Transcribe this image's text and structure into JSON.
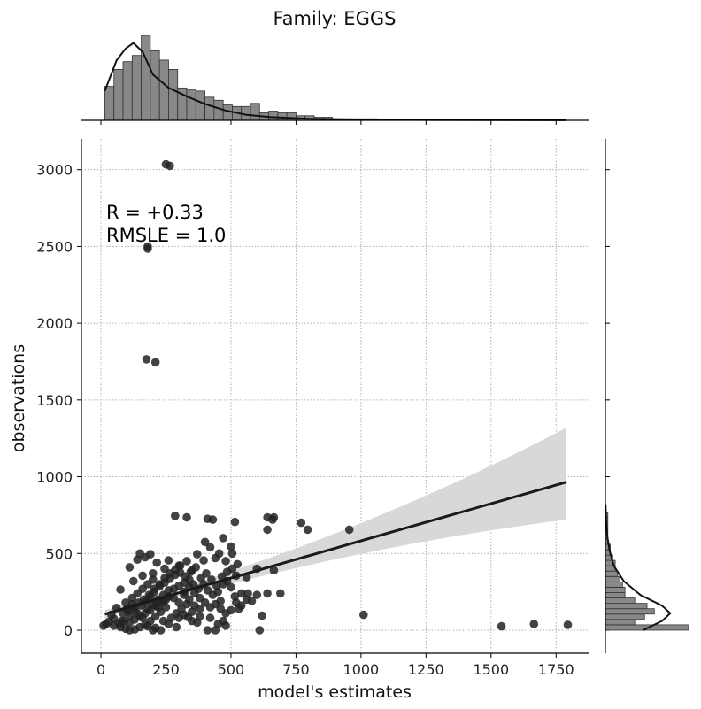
{
  "chart_data": {
    "type": "scatter",
    "title": "Family: EGGS",
    "xlabel": "model's estimates",
    "ylabel": "observations",
    "xlim": [
      -75,
      1875
    ],
    "ylim": [
      -150,
      3200
    ],
    "xticks": [
      "0",
      "250",
      "500",
      "750",
      "1000",
      "1250",
      "1500",
      "1750"
    ],
    "yticks": [
      "0",
      "500",
      "1000",
      "1500",
      "2000",
      "2500",
      "3000"
    ],
    "grid": true,
    "annotation": {
      "line1": "R = +0.33",
      "line2": "RMSLE =  1.0"
    },
    "regression": {
      "x": [
        15,
        1790
      ],
      "y": [
        105,
        965
      ],
      "ci_upper_end": 1320,
      "ci_lower_end": 720,
      "ci_width_start": 25
    },
    "points": [
      [
        250,
        3035
      ],
      [
        265,
        3025
      ],
      [
        180,
        2500
      ],
      [
        180,
        2485
      ],
      [
        175,
        1765
      ],
      [
        210,
        1745
      ],
      [
        955,
        655
      ],
      [
        1010,
        100
      ],
      [
        1540,
        25
      ],
      [
        1665,
        40
      ],
      [
        1795,
        35
      ],
      [
        285,
        745
      ],
      [
        330,
        735
      ],
      [
        410,
        725
      ],
      [
        430,
        720
      ],
      [
        515,
        705
      ],
      [
        640,
        735
      ],
      [
        660,
        720
      ],
      [
        665,
        735
      ],
      [
        770,
        700
      ],
      [
        795,
        655
      ],
      [
        640,
        655
      ],
      [
        665,
        390
      ],
      [
        600,
        400
      ],
      [
        620,
        95
      ],
      [
        610,
        0
      ],
      [
        690,
        240
      ],
      [
        640,
        240
      ],
      [
        540,
        240
      ],
      [
        565,
        240
      ],
      [
        520,
        355
      ],
      [
        560,
        345
      ],
      [
        505,
        500
      ],
      [
        500,
        545
      ],
      [
        455,
        500
      ],
      [
        400,
        575
      ],
      [
        420,
        540
      ],
      [
        470,
        600
      ],
      [
        370,
        495
      ],
      [
        395,
        455
      ],
      [
        350,
        390
      ],
      [
        300,
        80
      ],
      [
        335,
        85
      ],
      [
        370,
        50
      ],
      [
        410,
        0
      ],
      [
        440,
        0
      ],
      [
        530,
        140
      ],
      [
        515,
        220
      ],
      [
        460,
        190
      ],
      [
        380,
        140
      ],
      [
        260,
        455
      ],
      [
        300,
        420
      ],
      [
        330,
        450
      ],
      [
        190,
        495
      ],
      [
        170,
        475
      ],
      [
        215,
        440
      ],
      [
        245,
        400
      ],
      [
        110,
        410
      ],
      [
        140,
        460
      ],
      [
        200,
        370
      ],
      [
        160,
        355
      ],
      [
        125,
        320
      ],
      [
        75,
        265
      ],
      [
        95,
        180
      ],
      [
        60,
        145
      ],
      [
        40,
        100
      ],
      [
        30,
        55
      ],
      [
        20,
        40
      ],
      [
        10,
        30
      ],
      [
        50,
        75
      ],
      [
        80,
        60
      ],
      [
        110,
        95
      ],
      [
        130,
        130
      ],
      [
        155,
        160
      ],
      [
        175,
        190
      ],
      [
        190,
        220
      ],
      [
        205,
        250
      ],
      [
        225,
        285
      ],
      [
        245,
        310
      ],
      [
        265,
        335
      ],
      [
        285,
        360
      ],
      [
        305,
        375
      ],
      [
        320,
        310
      ],
      [
        340,
        330
      ],
      [
        355,
        300
      ],
      [
        375,
        270
      ],
      [
        395,
        300
      ],
      [
        410,
        260
      ],
      [
        430,
        230
      ],
      [
        450,
        250
      ],
      [
        470,
        300
      ],
      [
        485,
        320
      ],
      [
        500,
        280
      ],
      [
        280,
        210
      ],
      [
        300,
        180
      ],
      [
        320,
        230
      ],
      [
        340,
        200
      ],
      [
        360,
        160
      ],
      [
        250,
        150
      ],
      [
        230,
        120
      ],
      [
        210,
        90
      ],
      [
        190,
        60
      ],
      [
        170,
        35
      ],
      [
        150,
        20
      ],
      [
        130,
        5
      ],
      [
        110,
        0
      ],
      [
        95,
        10
      ],
      [
        75,
        20
      ],
      [
        200,
        0
      ],
      [
        230,
        0
      ],
      [
        260,
        40
      ],
      [
        290,
        20
      ],
      [
        320,
        100
      ],
      [
        350,
        120
      ],
      [
        380,
        90
      ],
      [
        420,
        80
      ],
      [
        470,
        60
      ],
      [
        500,
        130
      ],
      [
        120,
        210
      ],
      [
        140,
        240
      ],
      [
        160,
        270
      ],
      [
        180,
        300
      ],
      [
        200,
        330
      ],
      [
        220,
        200
      ],
      [
        240,
        230
      ],
      [
        260,
        260
      ],
      [
        100,
        140
      ],
      [
        120,
        170
      ],
      [
        140,
        110
      ],
      [
        160,
        80
      ],
      [
        180,
        140
      ],
      [
        200,
        170
      ],
      [
        220,
        150
      ],
      [
        240,
        190
      ],
      [
        260,
        220
      ],
      [
        280,
        270
      ],
      [
        300,
        290
      ],
      [
        320,
        250
      ],
      [
        340,
        280
      ],
      [
        360,
        240
      ],
      [
        380,
        210
      ],
      [
        400,
        180
      ],
      [
        420,
        150
      ],
      [
        440,
        170
      ],
      [
        460,
        140
      ],
      [
        480,
        110
      ],
      [
        520,
        180
      ],
      [
        540,
        160
      ],
      [
        560,
        200
      ],
      [
        580,
        190
      ],
      [
        600,
        230
      ],
      [
        50,
        30
      ],
      [
        70,
        45
      ],
      [
        90,
        60
      ],
      [
        110,
        50
      ],
      [
        130,
        70
      ],
      [
        150,
        90
      ],
      [
        170,
        110
      ],
      [
        190,
        130
      ],
      [
        210,
        160
      ],
      [
        230,
        180
      ],
      [
        250,
        200
      ],
      [
        85,
        110
      ],
      [
        105,
        125
      ],
      [
        125,
        150
      ],
      [
        145,
        180
      ],
      [
        165,
        200
      ],
      [
        185,
        230
      ],
      [
        205,
        270
      ],
      [
        225,
        300
      ],
      [
        245,
        340
      ],
      [
        265,
        370
      ],
      [
        285,
        390
      ],
      [
        305,
        420
      ],
      [
        325,
        350
      ],
      [
        345,
        380
      ],
      [
        365,
        410
      ],
      [
        385,
        340
      ],
      [
        405,
        370
      ],
      [
        425,
        330
      ],
      [
        445,
        290
      ],
      [
        465,
        350
      ],
      [
        485,
        380
      ],
      [
        505,
        400
      ],
      [
        525,
        430
      ],
      [
        440,
        470
      ],
      [
        480,
        450
      ],
      [
        150,
        500
      ],
      [
        180,
        25
      ],
      [
        210,
        15
      ],
      [
        240,
        60
      ],
      [
        270,
        80
      ],
      [
        290,
        110
      ],
      [
        310,
        140
      ],
      [
        330,
        170
      ],
      [
        350,
        60
      ],
      [
        450,
        40
      ],
      [
        480,
        30
      ]
    ],
    "top_histogram": {
      "bin_width": 35,
      "bin_start": 15,
      "counts": [
        22,
        33,
        38,
        42,
        55,
        45,
        39,
        33,
        21,
        20,
        19,
        15,
        13,
        10,
        9,
        9,
        11,
        5,
        6,
        5,
        5,
        3,
        3,
        2,
        2,
        1,
        1,
        1,
        1,
        1
      ],
      "kde": [
        [
          15,
          0.27
        ],
        [
          60,
          0.55
        ],
        [
          95,
          0.66
        ],
        [
          125,
          0.71
        ],
        [
          160,
          0.63
        ],
        [
          200,
          0.42
        ],
        [
          260,
          0.3
        ],
        [
          330,
          0.22
        ],
        [
          400,
          0.15
        ],
        [
          480,
          0.09
        ],
        [
          560,
          0.05
        ],
        [
          650,
          0.03
        ],
        [
          800,
          0.015
        ],
        [
          1000,
          0.007
        ],
        [
          1300,
          0.003
        ],
        [
          1790,
          0.001
        ]
      ]
    },
    "right_histogram": {
      "bin_height": 35,
      "bin_start": 0,
      "counts": [
        34,
        12,
        16,
        20,
        17,
        12,
        8,
        8,
        7,
        6,
        5,
        4,
        4,
        3,
        2,
        2,
        1,
        1,
        1,
        1,
        1,
        1
      ],
      "kde": [
        [
          0,
          0.45
        ],
        [
          60,
          0.68
        ],
        [
          110,
          0.78
        ],
        [
          160,
          0.68
        ],
        [
          230,
          0.42
        ],
        [
          320,
          0.22
        ],
        [
          420,
          0.1
        ],
        [
          520,
          0.05
        ],
        [
          620,
          0.02
        ],
        [
          720,
          0.008
        ],
        [
          820,
          0.002
        ]
      ]
    }
  }
}
